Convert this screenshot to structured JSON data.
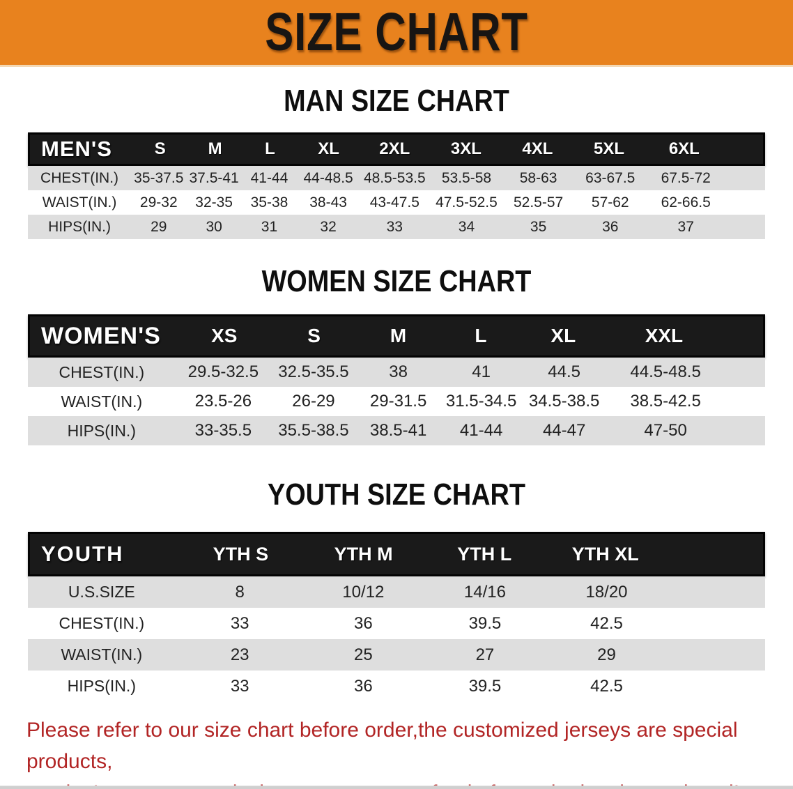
{
  "banner": {
    "title": "SIZE CHART"
  },
  "men": {
    "heading": "MAN SIZE CHART",
    "corner": "MEN'S",
    "sizes": [
      "S",
      "M",
      "L",
      "XL",
      "2XL",
      "3XL",
      "4XL",
      "5XL",
      "6XL"
    ],
    "chest": {
      "label": "CHEST(IN.)",
      "values": [
        "35-37.5",
        "37.5-41",
        "41-44",
        "44-48.5",
        "48.5-53.5",
        "53.5-58",
        "58-63",
        "63-67.5",
        "67.5-72"
      ]
    },
    "waist": {
      "label": "WAIST(IN.)",
      "values": [
        "29-32",
        "32-35",
        "35-38",
        "38-43",
        "43-47.5",
        "47.5-52.5",
        "52.5-57",
        "57-62",
        "62-66.5"
      ]
    },
    "hips": {
      "label": "HIPS(IN.)",
      "values": [
        "29",
        "30",
        "31",
        "32",
        "33",
        "34",
        "35",
        "36",
        "37"
      ]
    }
  },
  "women": {
    "heading": "WOMEN SIZE CHART",
    "corner": "WOMEN'S",
    "sizes": [
      "XS",
      "S",
      "M",
      "L",
      "XL",
      "XXL"
    ],
    "chest": {
      "label": "CHEST(IN.)",
      "values": [
        "29.5-32.5",
        "32.5-35.5",
        "38",
        "41",
        "44.5",
        "44.5-48.5"
      ]
    },
    "waist": {
      "label": "WAIST(IN.)",
      "values": [
        "23.5-26",
        "26-29",
        "29-31.5",
        "31.5-34.5",
        "34.5-38.5",
        "38.5-42.5"
      ]
    },
    "hips": {
      "label": "HIPS(IN.)",
      "values": [
        "33-35.5",
        "35.5-38.5",
        "38.5-41",
        "41-44",
        "44-47",
        "47-50"
      ]
    }
  },
  "youth": {
    "heading": "YOUTH SIZE CHART",
    "corner": "YOUTH",
    "sizes": [
      "YTH S",
      "YTH M",
      "YTH L",
      "YTH XL"
    ],
    "ussize": {
      "label": "U.S.SIZE",
      "values": [
        "8",
        "10/12",
        "14/16",
        "18/20"
      ]
    },
    "chest": {
      "label": "CHEST(IN.)",
      "values": [
        "33",
        "36",
        "39.5",
        "42.5"
      ]
    },
    "waist": {
      "label": "WAIST(IN.)",
      "values": [
        "23",
        "25",
        "27",
        "29"
      ]
    },
    "hips": {
      "label": "HIPS(IN.)",
      "values": [
        "33",
        "36",
        "39.5",
        "42.5"
      ]
    }
  },
  "disclaimer": {
    "line1": "Please refer to our size chart before order,the customized jerseys are special products,",
    "line2": "we don't accept cancel, change, teturn or refund after order has been placed!"
  },
  "colors": {
    "banner_orange": "#E8821E",
    "header_bar_black": "#1a1a1a",
    "row_gray": "#DEDEDE",
    "disclaimer_red": "#B22525"
  }
}
